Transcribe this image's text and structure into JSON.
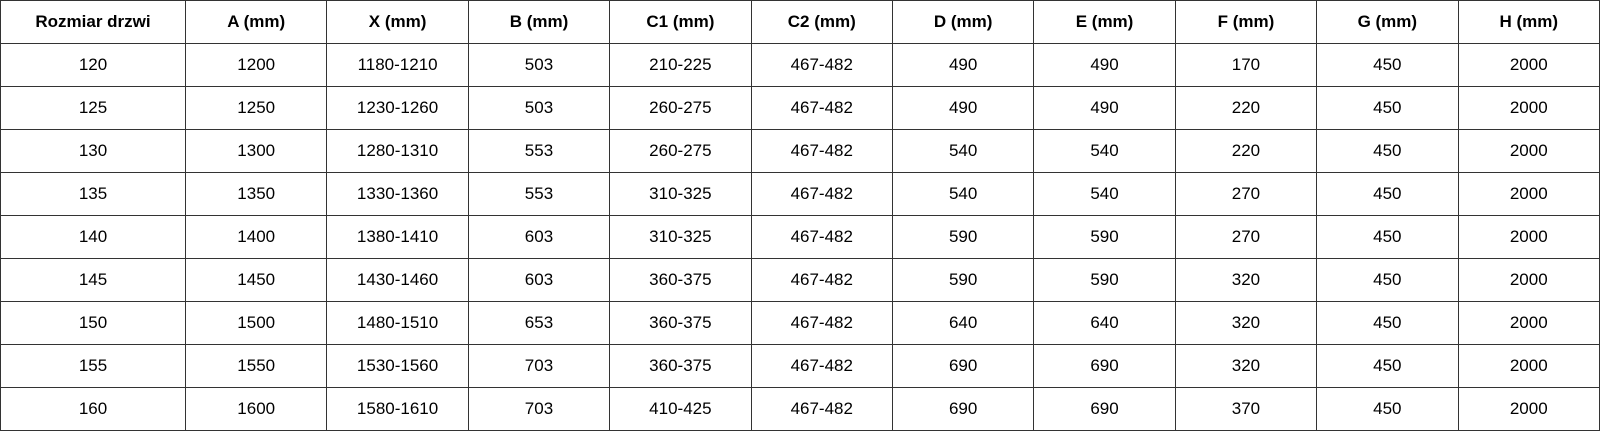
{
  "table": {
    "headers": [
      "Rozmiar drzwi",
      "A (mm)",
      "X (mm)",
      "B (mm)",
      "C1 (mm)",
      "C2 (mm)",
      "D (mm)",
      "E (mm)",
      "F (mm)",
      "G (mm)",
      "H (mm)"
    ],
    "rows": [
      [
        "120",
        "1200",
        "1180-1210",
        "503",
        "210-225",
        "467-482",
        "490",
        "490",
        "170",
        "450",
        "2000"
      ],
      [
        "125",
        "1250",
        "1230-1260",
        "503",
        "260-275",
        "467-482",
        "490",
        "490",
        "220",
        "450",
        "2000"
      ],
      [
        "130",
        "1300",
        "1280-1310",
        "553",
        "260-275",
        "467-482",
        "540",
        "540",
        "220",
        "450",
        "2000"
      ],
      [
        "135",
        "1350",
        "1330-1360",
        "553",
        "310-325",
        "467-482",
        "540",
        "540",
        "270",
        "450",
        "2000"
      ],
      [
        "140",
        "1400",
        "1380-1410",
        "603",
        "310-325",
        "467-482",
        "590",
        "590",
        "270",
        "450",
        "2000"
      ],
      [
        "145",
        "1450",
        "1430-1460",
        "603",
        "360-375",
        "467-482",
        "590",
        "590",
        "320",
        "450",
        "2000"
      ],
      [
        "150",
        "1500",
        "1480-1510",
        "653",
        "360-375",
        "467-482",
        "640",
        "640",
        "320",
        "450",
        "2000"
      ],
      [
        "155",
        "1550",
        "1530-1560",
        "703",
        "360-375",
        "467-482",
        "690",
        "690",
        "320",
        "450",
        "2000"
      ],
      [
        "160",
        "1600",
        "1580-1610",
        "703",
        "410-425",
        "467-482",
        "690",
        "690",
        "370",
        "450",
        "2000"
      ]
    ]
  }
}
